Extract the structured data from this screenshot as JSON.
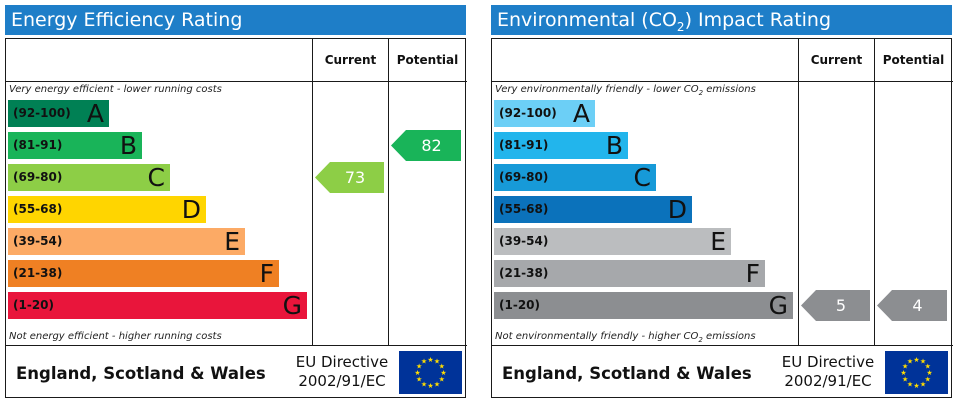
{
  "chart_data": [
    {
      "type": "table",
      "title": "Energy Efficiency Rating",
      "columns": [
        "Current",
        "Potential"
      ],
      "top_note": "Very energy efficient - lower running costs",
      "bottom_note": "Not energy efficient - higher running costs",
      "bands": [
        {
          "range": "(92-100)",
          "letter": "A",
          "color": "#008054"
        },
        {
          "range": "(81-91)",
          "letter": "B",
          "color": "#19b459"
        },
        {
          "range": "(69-80)",
          "letter": "C",
          "color": "#8dce46"
        },
        {
          "range": "(55-68)",
          "letter": "D",
          "color": "#ffd500"
        },
        {
          "range": "(39-54)",
          "letter": "E",
          "color": "#fcaa65"
        },
        {
          "range": "(21-38)",
          "letter": "F",
          "color": "#ef8023"
        },
        {
          "range": "(1-20)",
          "letter": "G",
          "color": "#e9153b"
        }
      ],
      "current": {
        "value": 73,
        "band": "C",
        "color": "#8dce46"
      },
      "potential": {
        "value": 82,
        "band": "B",
        "color": "#19b459"
      },
      "footer": {
        "region": "England, Scotland & Wales",
        "directive_line1": "EU Directive",
        "directive_line2": "2002/91/EC"
      }
    },
    {
      "type": "table",
      "title_main": "Environmental (CO",
      "title_sub": "2",
      "title_end": ") Impact Rating",
      "columns": [
        "Current",
        "Potential"
      ],
      "top_note_main": "Very environmentally friendly - lower CO",
      "top_note_sub": "2",
      "top_note_end": " emissions",
      "bottom_note_main": "Not environmentally friendly - higher CO",
      "bottom_note_sub": "2",
      "bottom_note_end": " emissions",
      "bands": [
        {
          "range": "(92-100)",
          "letter": "A",
          "color": "#6ccff6"
        },
        {
          "range": "(81-91)",
          "letter": "B",
          "color": "#22b5ec"
        },
        {
          "range": "(69-80)",
          "letter": "C",
          "color": "#179ad8"
        },
        {
          "range": "(55-68)",
          "letter": "D",
          "color": "#0b72bb"
        },
        {
          "range": "(39-54)",
          "letter": "E",
          "color": "#bbbdbf"
        },
        {
          "range": "(21-38)",
          "letter": "F",
          "color": "#a6a8ab"
        },
        {
          "range": "(1-20)",
          "letter": "G",
          "color": "#8c8e91"
        }
      ],
      "current": {
        "value": 5,
        "band": "G",
        "color": "#8c8e91"
      },
      "potential": {
        "value": 4,
        "band": "G",
        "color": "#8c8e91"
      },
      "footer": {
        "region": "England, Scotland & Wales",
        "directive_line1": "EU Directive",
        "directive_line2": "2002/91/EC"
      }
    }
  ],
  "colors": {
    "header_blue": "#1e7ec8",
    "eu_flag_blue": "#003399",
    "eu_star": "#ffdd00"
  }
}
